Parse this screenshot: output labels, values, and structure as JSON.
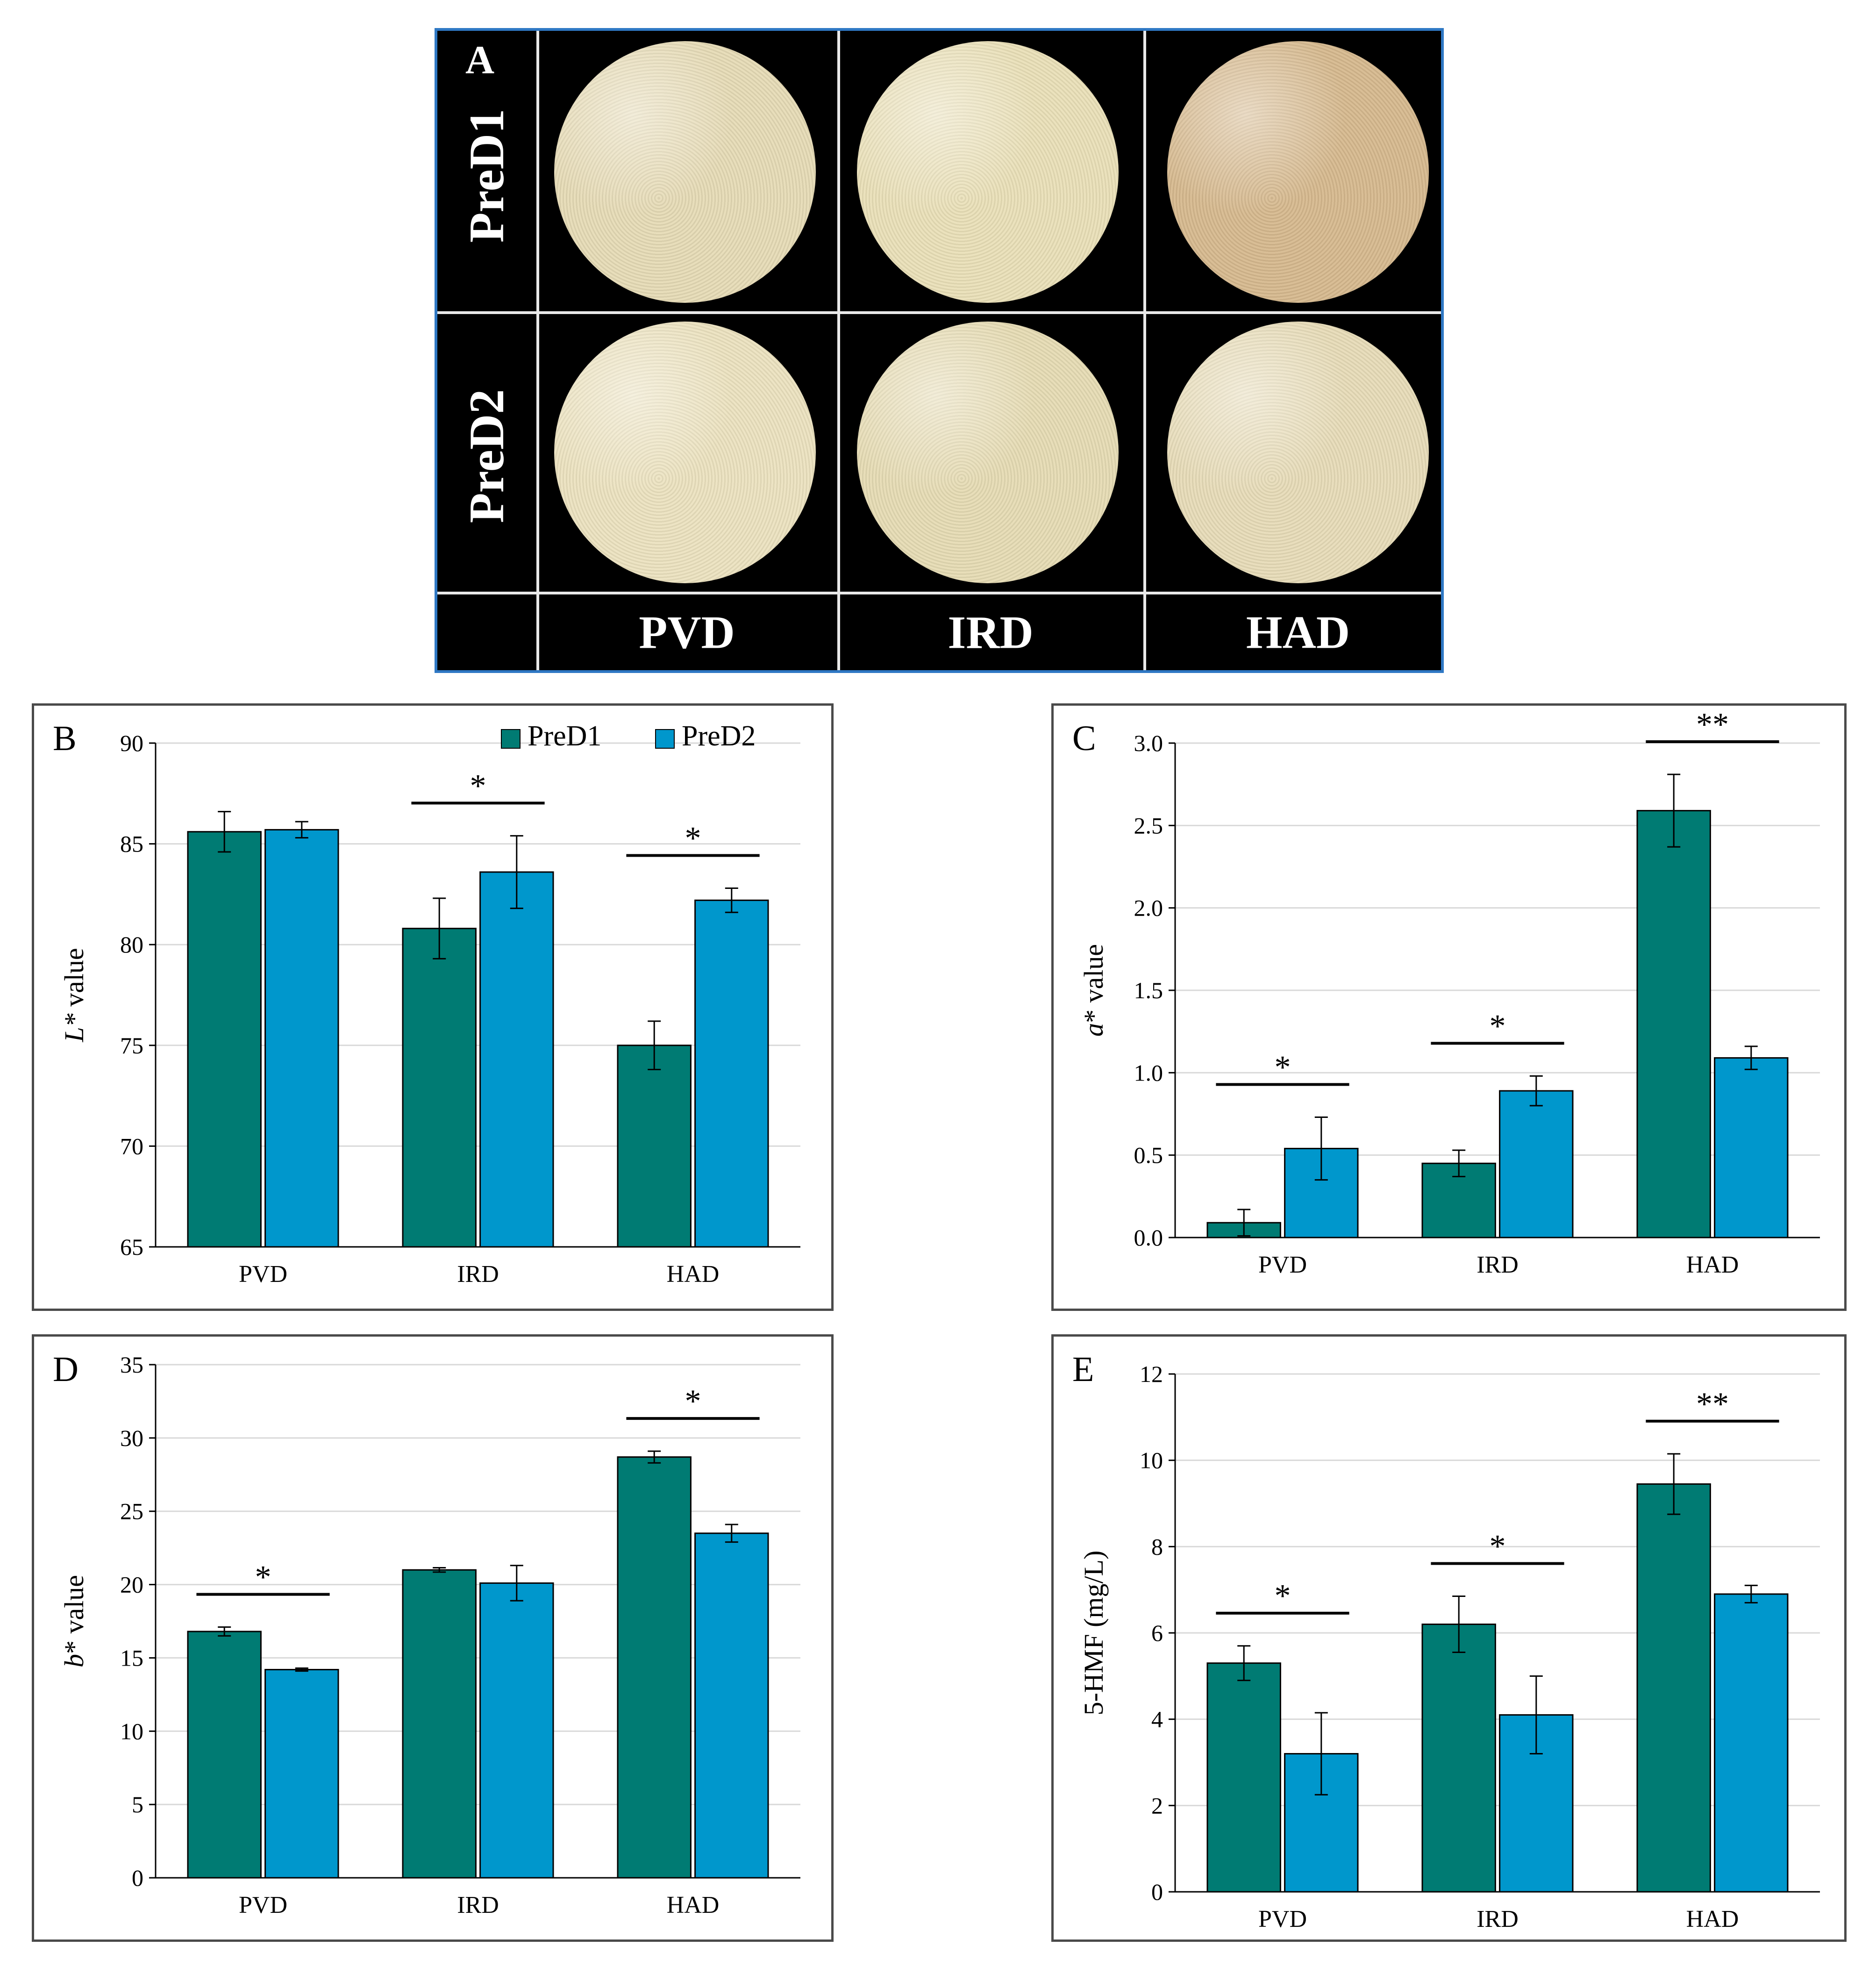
{
  "panel_a": {
    "letter": "A",
    "rows": [
      "PreD1",
      "PreD2"
    ],
    "columns": [
      "PVD",
      "IRD",
      "HAD"
    ],
    "photo_colors": [
      [
        "#e6dbb6",
        "#eae0b8",
        "#d6b98e"
      ],
      [
        "#ece2bf",
        "#e6dcb4",
        "#e7dcb8"
      ]
    ]
  },
  "colors": {
    "pred1": "#007b73",
    "pred2": "#0097cc"
  },
  "chart_data": [
    {
      "type": "bar",
      "letter": "B",
      "categories": [
        "PVD",
        "IRD",
        "HAD"
      ],
      "series": [
        {
          "name": "PreD1",
          "values": [
            85.6,
            80.8,
            75.0
          ],
          "errors": [
            1.0,
            1.5,
            1.2
          ]
        },
        {
          "name": "PreD2",
          "values": [
            85.7,
            83.6,
            82.2
          ],
          "errors": [
            0.4,
            1.8,
            0.6
          ]
        }
      ],
      "ylabel_italic": "L*",
      "ylabel_rest": " value",
      "ylim": [
        65,
        90
      ],
      "yticks": [
        "65",
        "70",
        "75",
        "80",
        "85",
        "90"
      ],
      "grid": true,
      "legend": "top-right",
      "significance": [
        "",
        "*",
        "*"
      ]
    },
    {
      "type": "bar",
      "letter": "C",
      "categories": [
        "PVD",
        "IRD",
        "HAD"
      ],
      "series": [
        {
          "name": "PreD1",
          "values": [
            0.09,
            0.45,
            2.59
          ],
          "errors": [
            0.08,
            0.08,
            0.22
          ]
        },
        {
          "name": "PreD2",
          "values": [
            0.54,
            0.89,
            1.09
          ],
          "errors": [
            0.19,
            0.09,
            0.07
          ]
        }
      ],
      "ylabel_italic": "a",
      "ylabel_rest": "* value",
      "ylim": [
        0,
        3.0
      ],
      "yticks": [
        "0.0",
        "0.5",
        "1.0",
        "1.5",
        "2.0",
        "2.5",
        "3.0"
      ],
      "grid": true,
      "significance": [
        "*",
        "*",
        "**"
      ]
    },
    {
      "type": "bar",
      "letter": "D",
      "categories": [
        "PVD",
        "IRD",
        "HAD"
      ],
      "series": [
        {
          "name": "PreD1",
          "values": [
            16.8,
            21.0,
            28.7
          ],
          "errors": [
            0.3,
            0.15,
            0.4
          ]
        },
        {
          "name": "PreD2",
          "values": [
            14.2,
            20.1,
            23.5
          ],
          "errors": [
            0.1,
            1.2,
            0.6
          ]
        }
      ],
      "ylabel_italic": "b",
      "ylabel_rest": "* value",
      "ylim": [
        0,
        35
      ],
      "yticks": [
        "0",
        "5",
        "10",
        "15",
        "20",
        "25",
        "30",
        "35"
      ],
      "grid": true,
      "significance": [
        "*",
        "",
        "*"
      ]
    },
    {
      "type": "bar",
      "letter": "E",
      "categories": [
        "PVD",
        "IRD",
        "HAD"
      ],
      "series": [
        {
          "name": "PreD1",
          "values": [
            5.3,
            6.2,
            9.45
          ],
          "errors": [
            0.4,
            0.65,
            0.7
          ]
        },
        {
          "name": "PreD2",
          "values": [
            3.2,
            4.1,
            6.9
          ],
          "errors": [
            0.95,
            0.9,
            0.2
          ]
        }
      ],
      "ylabel_italic": "",
      "ylabel_rest": "5-HMF (mg/L)",
      "ylim": [
        0,
        12
      ],
      "yticks": [
        "0",
        "2",
        "4",
        "6",
        "8",
        "10",
        "12"
      ],
      "grid": true,
      "significance": [
        "*",
        "*",
        "**"
      ]
    }
  ]
}
